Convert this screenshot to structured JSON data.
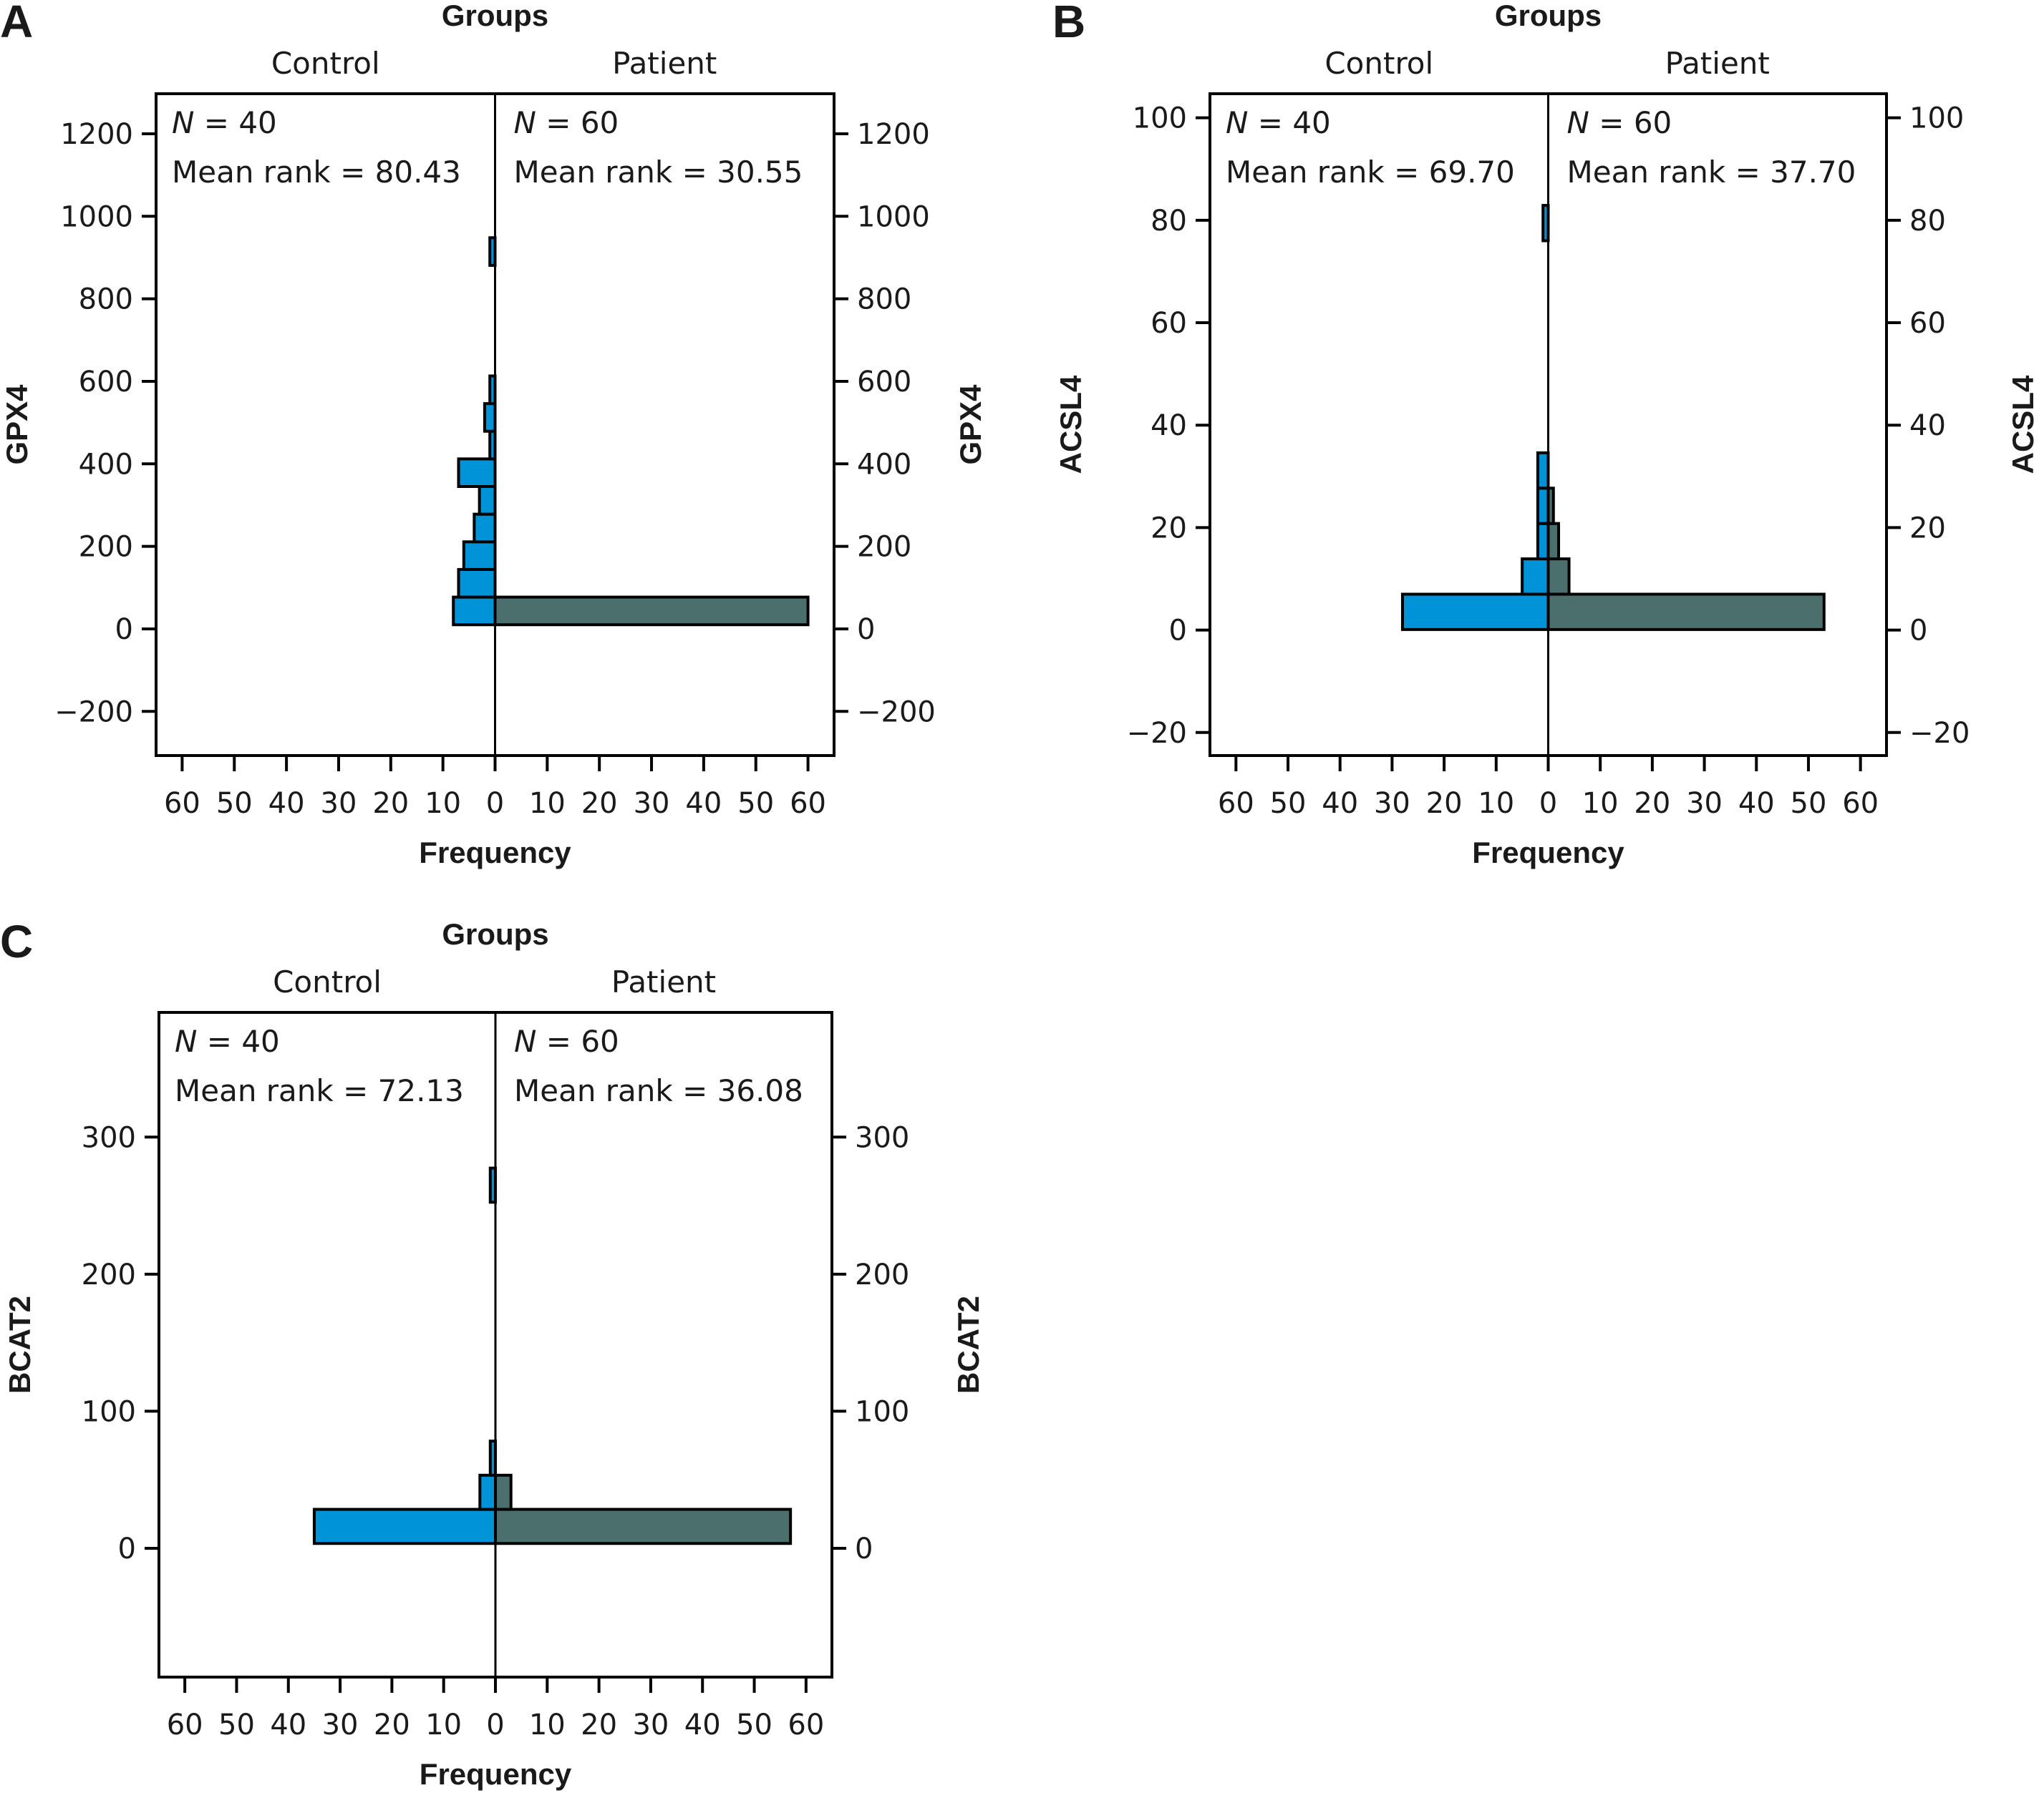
{
  "figure": {
    "colors": {
      "control": "#0093D8",
      "patient": "#4A6F6D",
      "axis": "#000000"
    }
  },
  "chart_data": [
    {
      "type": "bar",
      "subtype": "population-pyramid-histogram",
      "panel_letter": "A",
      "title": "Groups",
      "xlabel": "Frequency",
      "ylabel": "GPX4",
      "ylabel_right": "GPX4",
      "xlim": [
        0,
        65
      ],
      "xticks": [
        "60",
        "50",
        "40",
        "30",
        "20",
        "10",
        "0",
        "10",
        "20",
        "30",
        "40",
        "50",
        "60"
      ],
      "xtick_values": [
        -60,
        -50,
        -40,
        -30,
        -20,
        -10,
        0,
        10,
        20,
        30,
        40,
        50,
        60
      ],
      "ylim": [
        -307,
        1297
      ],
      "yticks": [
        -200,
        0,
        200,
        400,
        600,
        800,
        1000,
        1200
      ],
      "ytick_labels": [
        "−200",
        "0",
        "200",
        "400",
        "600",
        "800",
        "1000",
        "1200"
      ],
      "grid": false,
      "bins": {
        "start": 10,
        "width": 67
      },
      "series": [
        {
          "name": "Control",
          "side": "left",
          "n_label": "N = 40",
          "n_prefix": "N",
          "n_value": "= 40",
          "mean_rank_label": "Mean rank = 80.43",
          "counts": [
            8,
            7,
            6,
            4,
            3,
            7,
            1,
            2,
            1,
            0,
            0,
            0,
            0,
            1
          ]
        },
        {
          "name": "Patient",
          "side": "right",
          "n_label": "N = 60",
          "n_prefix": "N",
          "n_value": "= 60",
          "mean_rank_label": "Mean rank = 30.55",
          "counts": [
            60
          ]
        }
      ]
    },
    {
      "type": "bar",
      "subtype": "population-pyramid-histogram",
      "panel_letter": "B",
      "title": "Groups",
      "xlabel": "Frequency",
      "ylabel": "ACSL4",
      "ylabel_right": "ACSL4",
      "xlim": [
        0,
        65
      ],
      "xticks": [
        "60",
        "50",
        "40",
        "30",
        "20",
        "10",
        "0",
        "10",
        "20",
        "30",
        "40",
        "50",
        "60"
      ],
      "xtick_values": [
        -60,
        -50,
        -40,
        -30,
        -20,
        -10,
        0,
        10,
        20,
        30,
        40,
        50,
        60
      ],
      "ylim": [
        -24.5,
        104.7
      ],
      "yticks": [
        -20,
        0,
        20,
        40,
        60,
        80,
        100
      ],
      "ytick_labels": [
        "−20",
        "0",
        "20",
        "40",
        "60",
        "80",
        "100"
      ],
      "grid": false,
      "bins": {
        "start": 0.1,
        "width": 6.9
      },
      "series": [
        {
          "name": "Control",
          "side": "left",
          "n_label": "N = 40",
          "n_prefix": "N",
          "n_value": "= 40",
          "mean_rank_label": "Mean rank = 69.70",
          "counts": [
            28,
            5,
            2,
            2,
            2,
            0,
            0,
            0,
            0,
            0,
            0,
            1
          ]
        },
        {
          "name": "Patient",
          "side": "right",
          "n_label": "N = 60",
          "n_prefix": "N",
          "n_value": "= 60",
          "mean_rank_label": "Mean rank = 37.70",
          "counts": [
            53,
            4,
            2,
            1
          ]
        }
      ]
    },
    {
      "type": "bar",
      "subtype": "population-pyramid-histogram",
      "panel_letter": "C",
      "title": "Groups",
      "xlabel": "Frequency",
      "ylabel": "BCAT2",
      "ylabel_right": "BCAT2",
      "xlim": [
        0,
        65
      ],
      "xticks": [
        "60",
        "50",
        "40",
        "30",
        "20",
        "10",
        "0",
        "10",
        "20",
        "30",
        "40",
        "50",
        "60"
      ],
      "xtick_values": [
        -60,
        -50,
        -40,
        -30,
        -20,
        -10,
        0,
        10,
        20,
        30,
        40,
        50,
        60
      ],
      "ylim": [
        -94,
        391
      ],
      "yticks": [
        0,
        100,
        200,
        300
      ],
      "ytick_labels": [
        "0",
        "100",
        "200",
        "300"
      ],
      "grid": false,
      "bins": {
        "start": 3.5,
        "width": 24.9
      },
      "series": [
        {
          "name": "Control",
          "side": "left",
          "n_label": "N = 40",
          "n_prefix": "N",
          "n_value": "= 40",
          "mean_rank_label": "Mean rank = 72.13",
          "counts": [
            35,
            3,
            1,
            0,
            0,
            0,
            0,
            0,
            0,
            0,
            1
          ]
        },
        {
          "name": "Patient",
          "side": "right",
          "n_label": "N = 60",
          "n_prefix": "N",
          "n_value": "= 60",
          "mean_rank_label": "Mean rank = 36.08",
          "counts": [
            57,
            3
          ]
        }
      ]
    }
  ]
}
